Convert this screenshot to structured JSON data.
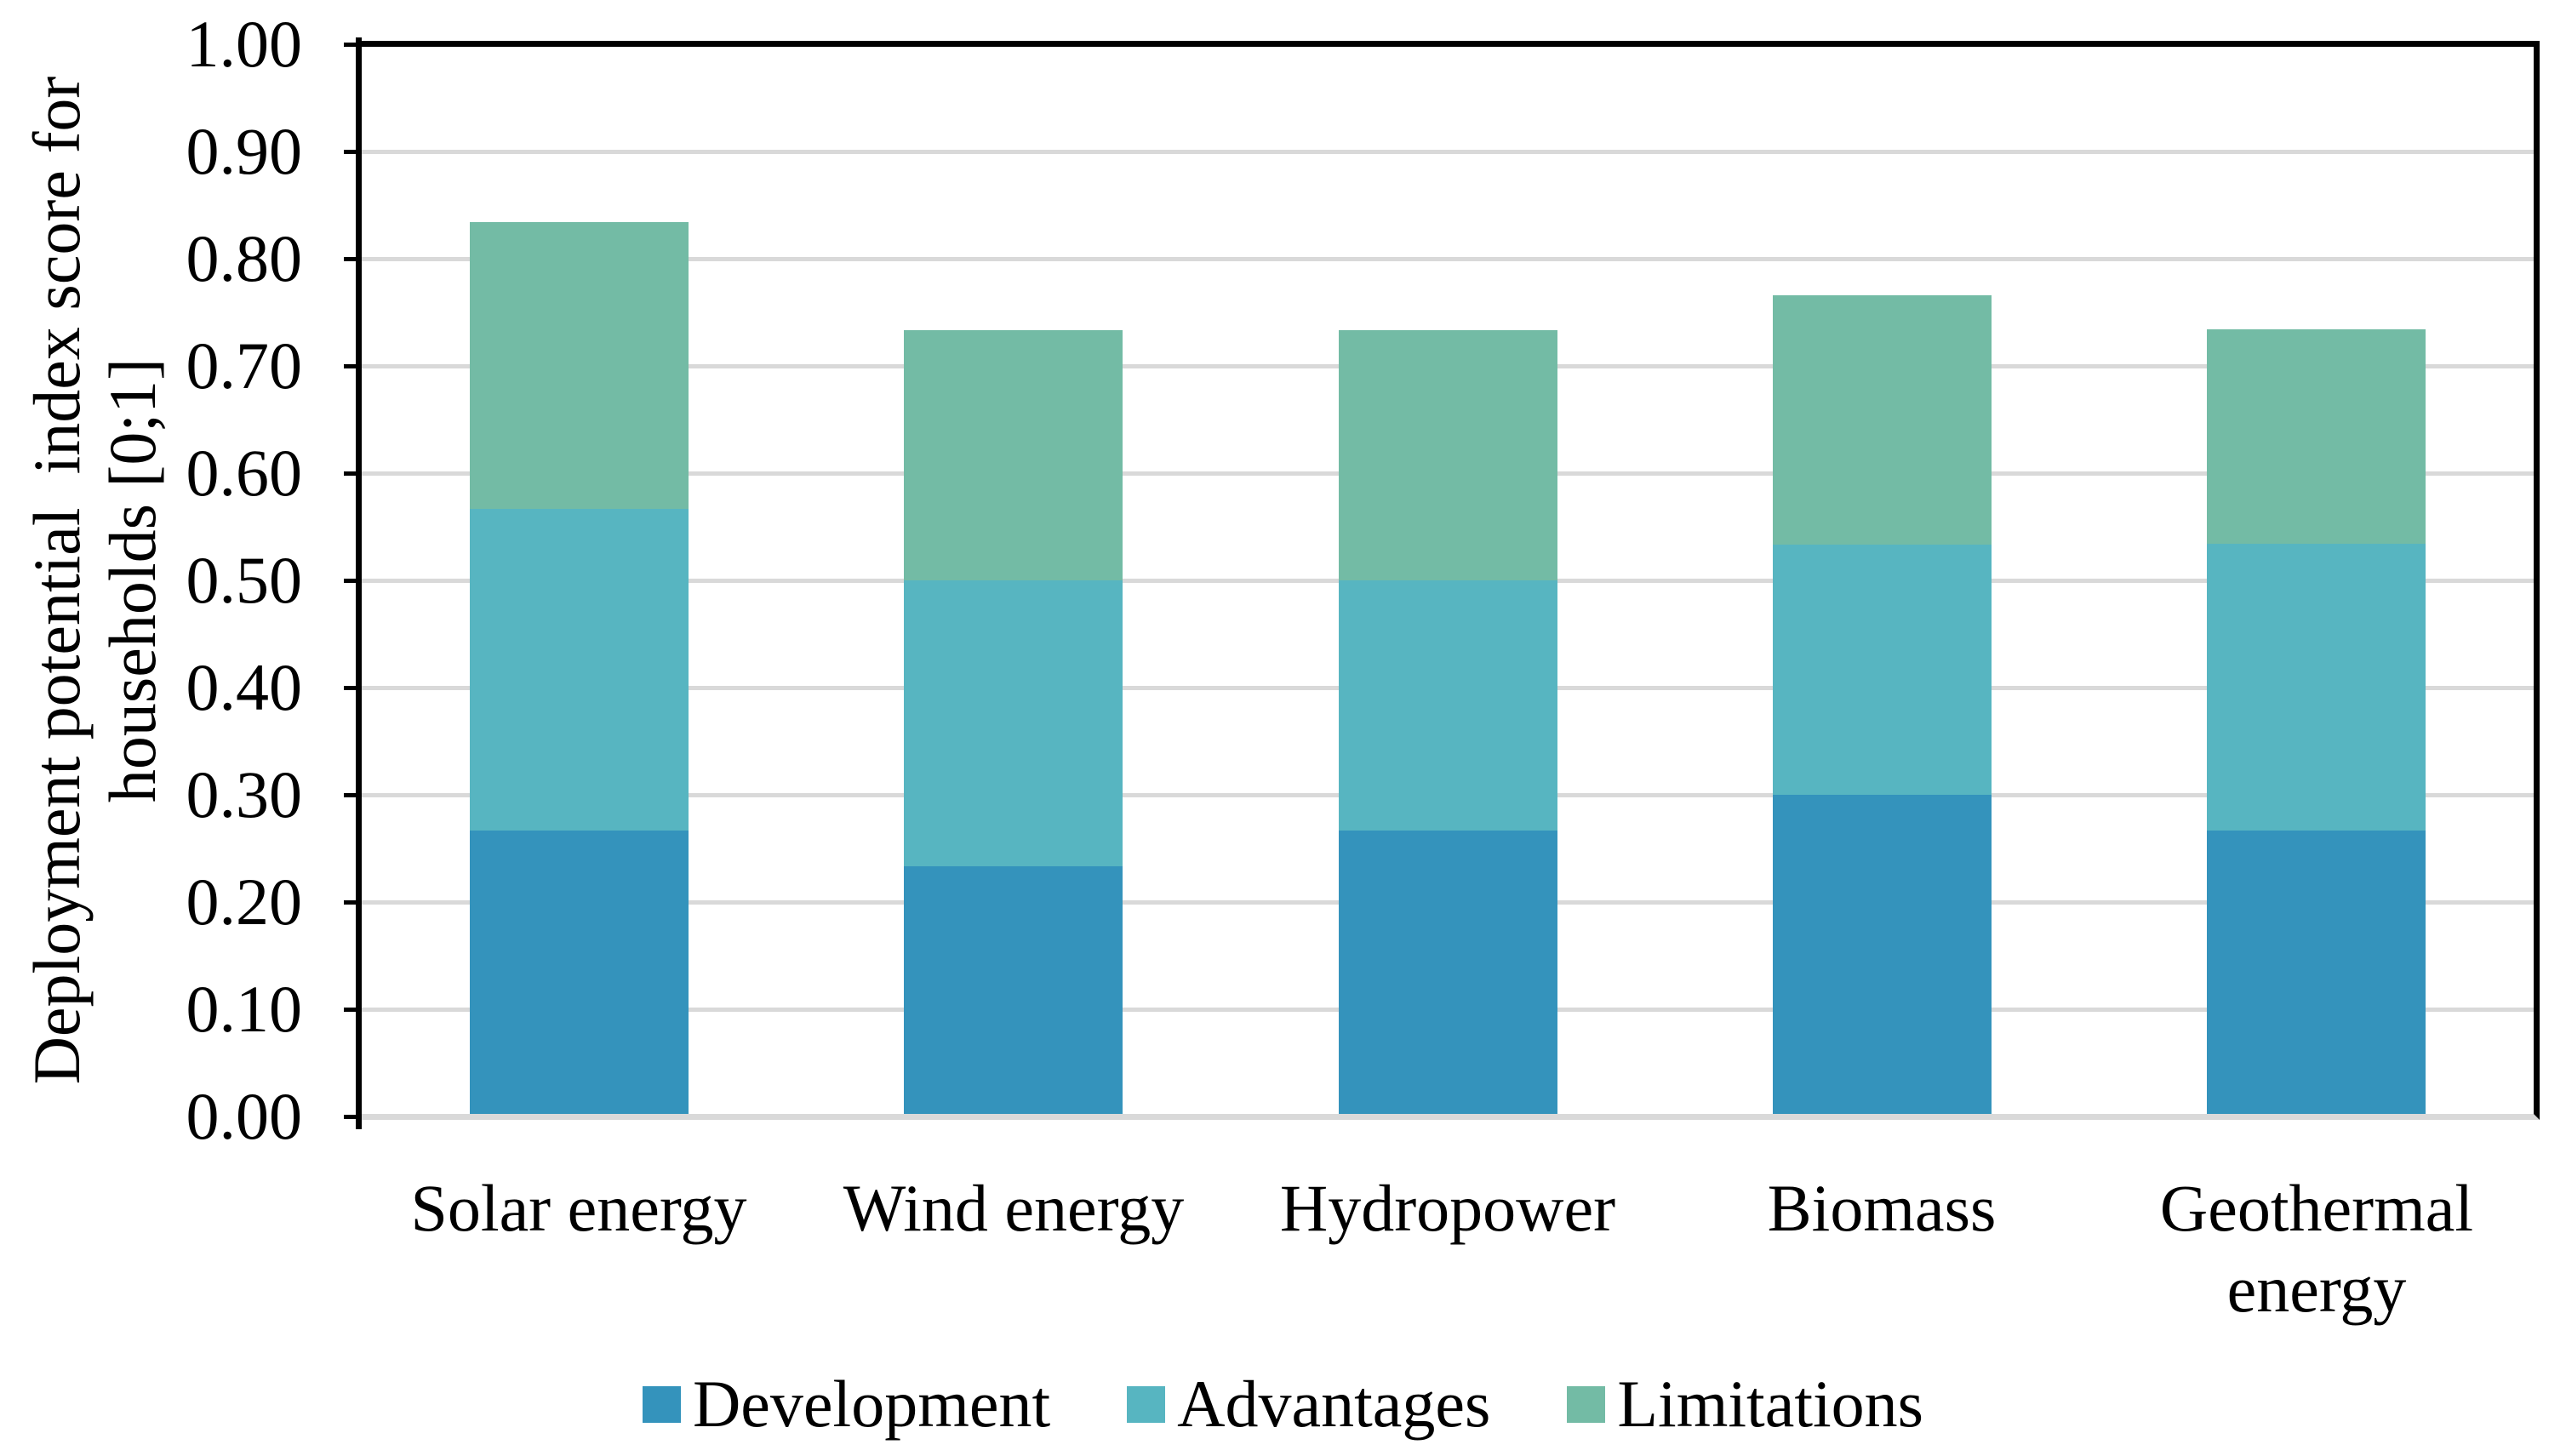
{
  "page": {
    "background": "#FFFFFF"
  },
  "y_axis": {
    "title_line1": "Deployment potential  index score for",
    "title_line2": "households [0;1]",
    "tick_labels": [
      "1.00",
      "0.90",
      "0.80",
      "0.70",
      "0.60",
      "0.50",
      "0.40",
      "0.30",
      "0.20",
      "0.10",
      "0.00"
    ]
  },
  "legend": {
    "items": [
      {
        "label": "Development",
        "color": "#3493BC"
      },
      {
        "label": "Advantages",
        "color": "#57B5C1"
      },
      {
        "label": "Limitations",
        "color": "#73BBA5"
      }
    ]
  },
  "chart_data": {
    "type": "bar",
    "stacked": true,
    "title": "",
    "xlabel": "",
    "ylabel": "Deployment potential  index score for households [0;1]",
    "ylim": [
      0,
      1
    ],
    "ytick_step": 0.1,
    "grid": true,
    "legend_position": "bottom",
    "categories": [
      "Solar energy",
      "Wind energy",
      "Hydropower",
      "Biomass",
      "Geothermal energy"
    ],
    "series": [
      {
        "name": "Development",
        "color": "#3493BC",
        "values": [
          0.267,
          0.233,
          0.267,
          0.3,
          0.267
        ]
      },
      {
        "name": "Advantages",
        "color": "#57B5C1",
        "values": [
          0.3,
          0.267,
          0.233,
          0.233,
          0.267
        ]
      },
      {
        "name": "Limitations",
        "color": "#73BBA5",
        "values": [
          0.267,
          0.233,
          0.233,
          0.233,
          0.2
        ]
      }
    ],
    "colors": {
      "gridline": "#D9D9D9",
      "axis": "#000000",
      "text": "#000000"
    }
  }
}
